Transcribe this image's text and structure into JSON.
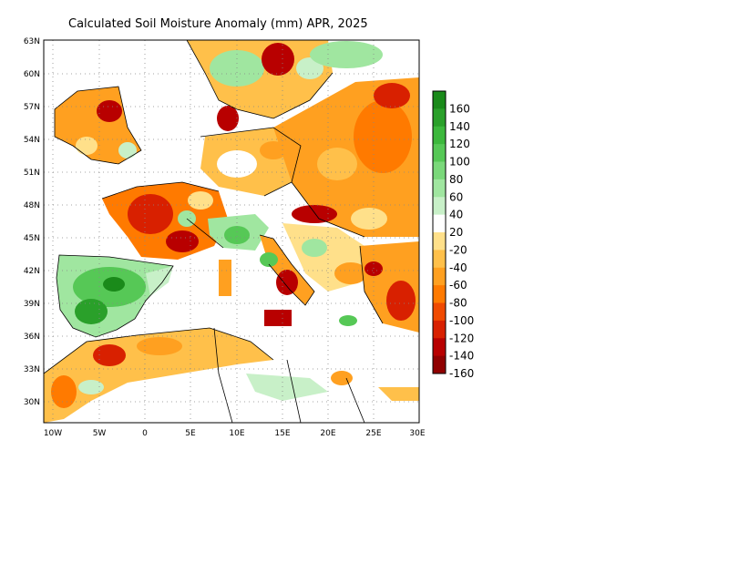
{
  "title": "Calculated Soil Moisture Anomaly (mm) APR, 2025",
  "map": {
    "lat_labels": [
      "63N",
      "60N",
      "57N",
      "54N",
      "51N",
      "48N",
      "45N",
      "42N",
      "39N",
      "36N",
      "33N",
      "30N"
    ],
    "lon_labels": [
      "10W",
      "5W",
      "0",
      "5E",
      "10E",
      "15E",
      "20E",
      "25E",
      "30E"
    ],
    "grid": "dotted"
  },
  "colorbar": {
    "labels": [
      "160",
      "140",
      "120",
      "100",
      "80",
      "60",
      "40",
      "20",
      "-20",
      "-40",
      "-60",
      "-80",
      "-100",
      "-120",
      "-140",
      "-160"
    ],
    "colors": [
      "#1a8a1a",
      "#2aa02a",
      "#3cb83c",
      "#56c856",
      "#7ad87a",
      "#a0e6a0",
      "#c8f0c8",
      "#ffffff",
      "#ffe08a",
      "#ffc04a",
      "#ffa020",
      "#ff7a00",
      "#f04a00",
      "#d82000",
      "#b80000",
      "#900000"
    ]
  }
}
